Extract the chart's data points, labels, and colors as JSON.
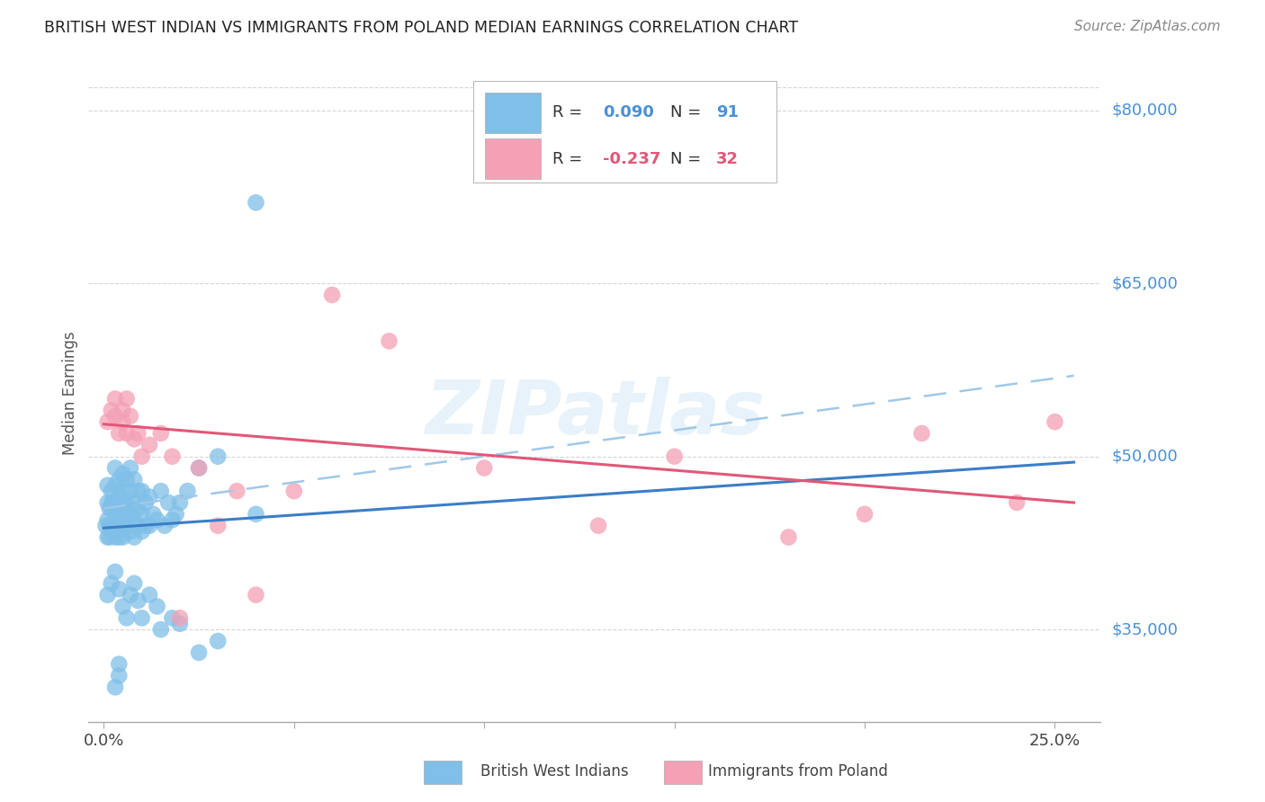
{
  "title": "BRITISH WEST INDIAN VS IMMIGRANTS FROM POLAND MEDIAN EARNINGS CORRELATION CHART",
  "source": "Source: ZipAtlas.com",
  "ylabel": "Median Earnings",
  "y_tick_labels": [
    "$35,000",
    "$50,000",
    "$65,000",
    "$80,000"
  ],
  "y_tick_values": [
    35000,
    50000,
    65000,
    80000
  ],
  "xlim": [
    -0.004,
    0.262
  ],
  "ylim": [
    27000,
    84000
  ],
  "blue_color": "#7fbfe8",
  "pink_color": "#f4a0b5",
  "blue_line_color": "#3a7ec6",
  "pink_line_color": "#e05878",
  "dashed_line_color": "#a0c8e8",
  "right_label_color": "#4a90d9",
  "grid_color": "#cccccc",
  "background_color": "#ffffff",
  "legend_label_blue": "British West Indians",
  "legend_label_pink": "Immigrants from Poland",
  "watermark": "ZIPatlas",
  "blue_trend_x0": 0.0,
  "blue_trend_x1": 0.255,
  "blue_trend_y0": 43800,
  "blue_trend_y1": 49500,
  "pink_trend_x0": 0.0,
  "pink_trend_x1": 0.255,
  "pink_trend_y0": 52800,
  "pink_trend_y1": 46000,
  "dashed_trend_y0": 45500,
  "dashed_trend_y1": 57000,
  "blue_x": [
    0.0005,
    0.001,
    0.001,
    0.001,
    0.001,
    0.0015,
    0.0015,
    0.0015,
    0.002,
    0.002,
    0.002,
    0.002,
    0.002,
    0.0025,
    0.0025,
    0.003,
    0.003,
    0.003,
    0.003,
    0.003,
    0.003,
    0.003,
    0.004,
    0.004,
    0.004,
    0.004,
    0.004,
    0.004,
    0.005,
    0.005,
    0.005,
    0.005,
    0.005,
    0.005,
    0.006,
    0.006,
    0.006,
    0.006,
    0.006,
    0.007,
    0.007,
    0.007,
    0.007,
    0.008,
    0.008,
    0.008,
    0.008,
    0.009,
    0.009,
    0.009,
    0.01,
    0.01,
    0.01,
    0.011,
    0.011,
    0.012,
    0.012,
    0.013,
    0.014,
    0.015,
    0.016,
    0.017,
    0.018,
    0.019,
    0.02,
    0.022,
    0.025,
    0.03,
    0.001,
    0.002,
    0.003,
    0.004,
    0.005,
    0.006,
    0.007,
    0.008,
    0.009,
    0.01,
    0.012,
    0.014,
    0.015,
    0.018,
    0.02,
    0.025,
    0.03,
    0.003,
    0.004,
    0.004,
    0.04,
    0.04
  ],
  "blue_y": [
    44000,
    44500,
    43000,
    46000,
    47500,
    44000,
    43000,
    45500,
    43500,
    44000,
    46000,
    47000,
    45500,
    44000,
    46000,
    43000,
    44000,
    45000,
    46000,
    47500,
    49000,
    43500,
    43000,
    44000,
    45000,
    46500,
    48000,
    44500,
    43000,
    44000,
    45500,
    47000,
    48500,
    46000,
    44000,
    45000,
    46000,
    48000,
    44500,
    43500,
    45000,
    47000,
    49000,
    43000,
    44500,
    46000,
    48000,
    44000,
    45500,
    47000,
    43500,
    45000,
    47000,
    44000,
    46000,
    44000,
    46500,
    45000,
    44500,
    47000,
    44000,
    46000,
    44500,
    45000,
    46000,
    47000,
    49000,
    50000,
    38000,
    39000,
    40000,
    38500,
    37000,
    36000,
    38000,
    39000,
    37500,
    36000,
    38000,
    37000,
    35000,
    36000,
    35500,
    33000,
    34000,
    30000,
    31000,
    32000,
    45000,
    72000
  ],
  "pink_x": [
    0.001,
    0.002,
    0.003,
    0.003,
    0.004,
    0.005,
    0.005,
    0.006,
    0.006,
    0.007,
    0.008,
    0.009,
    0.01,
    0.012,
    0.015,
    0.018,
    0.025,
    0.035,
    0.05,
    0.06,
    0.075,
    0.1,
    0.13,
    0.15,
    0.18,
    0.2,
    0.215,
    0.24,
    0.25,
    0.03,
    0.04,
    0.02
  ],
  "pink_y": [
    53000,
    54000,
    53500,
    55000,
    52000,
    54000,
    53000,
    52000,
    55000,
    53500,
    51500,
    52000,
    50000,
    51000,
    52000,
    50000,
    49000,
    47000,
    47000,
    64000,
    60000,
    49000,
    44000,
    50000,
    43000,
    45000,
    52000,
    46000,
    53000,
    44000,
    38000,
    36000
  ]
}
